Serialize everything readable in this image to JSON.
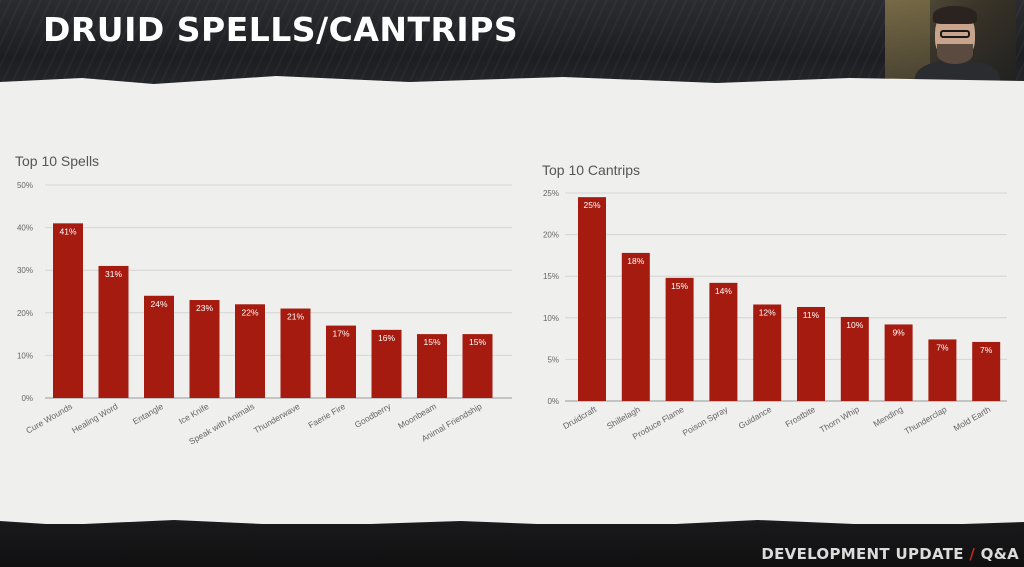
{
  "slide": {
    "title": "DRUID SPELLS/CANTRIPS",
    "footer_main": "DEVELOPMENT UPDATE",
    "footer_slash": "/",
    "footer_tail": "Q&A",
    "bar_color": "#a61b10",
    "accent_color": "#c0291c"
  },
  "chart_data": [
    {
      "type": "bar",
      "title": "Top 10 Spells",
      "categories": [
        "Cure Wounds",
        "Healing Word",
        "Entangle",
        "Ice Knife",
        "Speak with Animals",
        "Thunderwave",
        "Faerie Fire",
        "Goodberry",
        "Moonbeam",
        "Animal Friendship"
      ],
      "values": [
        41,
        31,
        24,
        23,
        22,
        21,
        17,
        16,
        15,
        15
      ],
      "value_labels": [
        "41%",
        "31%",
        "24%",
        "23%",
        "22%",
        "21%",
        "17%",
        "16%",
        "15%",
        "15%"
      ],
      "yticks": [
        0,
        10,
        20,
        30,
        40,
        50
      ],
      "ytick_labels": [
        "0%",
        "10%",
        "20%",
        "30%",
        "40%",
        "50%"
      ],
      "ylim": [
        0,
        50
      ],
      "grid": true,
      "xlabel": "",
      "ylabel": ""
    },
    {
      "type": "bar",
      "title": "Top 10 Cantrips",
      "categories": [
        "Druidcraft",
        "Shillelagh",
        "Produce Flame",
        "Poison Spray",
        "Guidance",
        "Frostbite",
        "Thorn Whip",
        "Mending",
        "Thunderclap",
        "Mold Earth"
      ],
      "values": [
        24.5,
        17.8,
        14.8,
        14.2,
        11.6,
        11.3,
        10.1,
        9.2,
        7.4,
        7.1
      ],
      "value_labels": [
        "25%",
        "18%",
        "15%",
        "14%",
        "12%",
        "11%",
        "10%",
        "9%",
        "7%",
        "7%"
      ],
      "yticks": [
        0,
        5,
        10,
        15,
        20,
        25
      ],
      "ytick_labels": [
        "0%",
        "5%",
        "10%",
        "15%",
        "20%",
        "25%"
      ],
      "ylim": [
        0,
        25
      ],
      "grid": true,
      "xlabel": "",
      "ylabel": ""
    }
  ]
}
